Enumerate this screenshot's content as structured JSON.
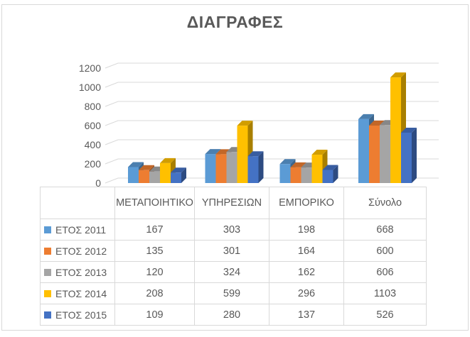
{
  "title": "ΔΙΑΓΡΑΦΕΣ",
  "chart_data": {
    "type": "bar",
    "projection": "3d-clustered-column",
    "title": "ΔΙΑΓΡΑΦΕΣ",
    "categories": [
      "ΜΕΤΑΠΟΙΗΤΙΚΟ",
      "ΥΠΗΡΕΣΙΩΝ",
      "ΕΜΠΟΡΙΚΟ",
      "Σύνολο"
    ],
    "series": [
      {
        "name": "ΕΤΟΣ 2011",
        "color": "#5B9BD5",
        "values": [
          167,
          303,
          198,
          668
        ]
      },
      {
        "name": "ΕΤΟΣ 2012",
        "color": "#ED7D31",
        "values": [
          135,
          301,
          164,
          600
        ]
      },
      {
        "name": "ΕΤΟΣ 2013",
        "color": "#A5A5A5",
        "values": [
          120,
          324,
          162,
          606
        ]
      },
      {
        "name": "ΕΤΟΣ 2014",
        "color": "#FFC000",
        "values": [
          208,
          599,
          296,
          1103
        ]
      },
      {
        "name": "ΕΤΟΣ 2015",
        "color": "#4472C4",
        "values": [
          109,
          280,
          137,
          526
        ]
      }
    ],
    "y_axis": {
      "min": 0,
      "max": 1200,
      "step": 200,
      "ticks": [
        "0",
        "200",
        "400",
        "600",
        "800",
        "1000",
        "1200"
      ]
    },
    "grid": true,
    "legend_position": "data-table-left-keys",
    "xlabel": "",
    "ylabel": ""
  },
  "colors": {
    "text": "#595959",
    "gridline": "#D9D9D9",
    "table_border": "#D9D9D9",
    "background": "#FFFFFF"
  }
}
